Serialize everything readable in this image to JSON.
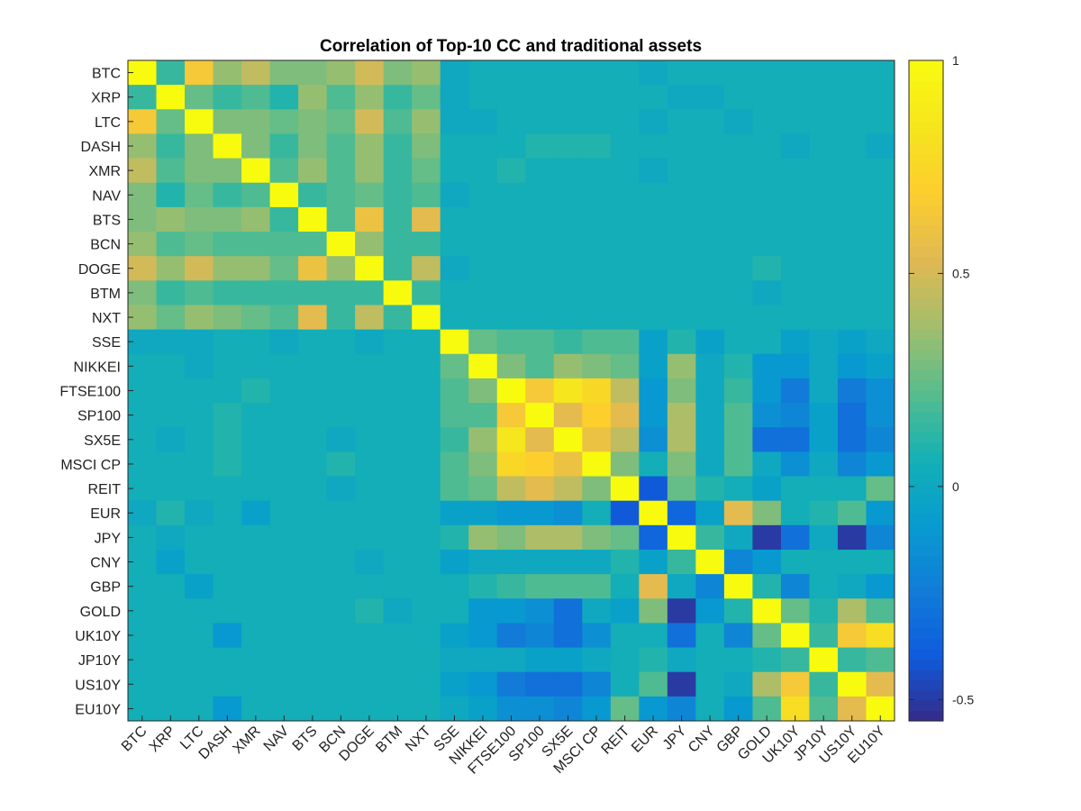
{
  "chart_data": {
    "type": "heatmap",
    "title": "Correlation of Top-10 CC and traditional assets",
    "xlabel": "",
    "ylabel": "",
    "labels": [
      "BTC",
      "XRP",
      "LTC",
      "DASH",
      "XMR",
      "NAV",
      "BTS",
      "BCN",
      "DOGE",
      "BTM",
      "NXT",
      "SSE",
      "NIKKEI",
      "FTSE100",
      "SP100",
      "SX5E",
      "MSCI CP",
      "REIT",
      "EUR",
      "JPY",
      "CNY",
      "GBP",
      "GOLD",
      "UK10Y",
      "JP10Y",
      "US10Y",
      "EU10Y"
    ],
    "values": [
      [
        1.0,
        0.15,
        0.65,
        0.35,
        0.45,
        0.3,
        0.3,
        0.35,
        0.5,
        0.3,
        0.35,
        0.0,
        0.05,
        0.05,
        0.05,
        0.05,
        0.05,
        0.05,
        0.0,
        0.05,
        0.05,
        0.05,
        0.05,
        0.05,
        0.05,
        0.05,
        0.05
      ],
      [
        0.15,
        1.0,
        0.25,
        0.15,
        0.2,
        0.1,
        0.35,
        0.2,
        0.35,
        0.15,
        0.25,
        0.0,
        0.05,
        0.05,
        0.05,
        0.05,
        0.05,
        0.05,
        0.05,
        0.0,
        0.0,
        0.05,
        0.05,
        0.05,
        0.05,
        0.05,
        0.05
      ],
      [
        0.65,
        0.25,
        1.0,
        0.3,
        0.3,
        0.25,
        0.3,
        0.25,
        0.5,
        0.2,
        0.35,
        0.0,
        0.0,
        0.05,
        0.05,
        0.05,
        0.05,
        0.05,
        0.0,
        0.05,
        0.05,
        0.0,
        0.05,
        0.05,
        0.05,
        0.05,
        0.05
      ],
      [
        0.35,
        0.15,
        0.3,
        1.0,
        0.3,
        0.15,
        0.3,
        0.2,
        0.35,
        0.15,
        0.3,
        0.05,
        0.05,
        0.05,
        0.1,
        0.1,
        0.1,
        0.05,
        0.05,
        0.05,
        0.05,
        0.05,
        0.05,
        0.0,
        0.05,
        0.05,
        0.0
      ],
      [
        0.45,
        0.2,
        0.3,
        0.3,
        1.0,
        0.2,
        0.35,
        0.2,
        0.35,
        0.15,
        0.25,
        0.05,
        0.05,
        0.1,
        0.05,
        0.05,
        0.05,
        0.05,
        0.0,
        0.05,
        0.05,
        0.05,
        0.05,
        0.05,
        0.05,
        0.05,
        0.05
      ],
      [
        0.3,
        0.1,
        0.25,
        0.15,
        0.2,
        1.0,
        0.15,
        0.2,
        0.25,
        0.15,
        0.2,
        0.0,
        0.05,
        0.05,
        0.05,
        0.05,
        0.05,
        0.05,
        0.05,
        0.05,
        0.05,
        0.05,
        0.05,
        0.05,
        0.05,
        0.05,
        0.05
      ],
      [
        0.3,
        0.35,
        0.3,
        0.3,
        0.35,
        0.15,
        1.0,
        0.2,
        0.6,
        0.15,
        0.55,
        0.05,
        0.05,
        0.05,
        0.05,
        0.05,
        0.05,
        0.05,
        0.05,
        0.05,
        0.05,
        0.05,
        0.05,
        0.05,
        0.05,
        0.05,
        0.05
      ],
      [
        0.35,
        0.2,
        0.25,
        0.2,
        0.2,
        0.2,
        0.2,
        1.0,
        0.35,
        0.15,
        0.15,
        0.05,
        0.05,
        0.05,
        0.05,
        0.05,
        0.05,
        0.05,
        0.05,
        0.05,
        0.05,
        0.05,
        0.05,
        0.05,
        0.05,
        0.05,
        0.05
      ],
      [
        0.5,
        0.35,
        0.5,
        0.35,
        0.35,
        0.25,
        0.6,
        0.35,
        1.0,
        0.15,
        0.45,
        0.0,
        0.05,
        0.05,
        0.05,
        0.05,
        0.05,
        0.05,
        0.05,
        0.05,
        0.05,
        0.05,
        0.1,
        0.05,
        0.05,
        0.05,
        0.05
      ],
      [
        0.3,
        0.15,
        0.2,
        0.15,
        0.15,
        0.15,
        0.15,
        0.15,
        0.15,
        1.0,
        0.15,
        0.05,
        0.05,
        0.05,
        0.05,
        0.05,
        0.05,
        0.05,
        0.05,
        0.05,
        0.05,
        0.05,
        0.0,
        0.05,
        0.05,
        0.05,
        0.05
      ],
      [
        0.35,
        0.25,
        0.35,
        0.3,
        0.25,
        0.2,
        0.55,
        0.15,
        0.45,
        0.15,
        1.0,
        0.05,
        0.05,
        0.05,
        0.05,
        0.05,
        0.05,
        0.05,
        0.05,
        0.05,
        0.05,
        0.05,
        0.05,
        0.05,
        0.05,
        0.05,
        0.05
      ],
      [
        0.0,
        0.0,
        0.0,
        0.05,
        0.05,
        0.0,
        0.05,
        0.05,
        0.0,
        0.05,
        0.05,
        1.0,
        0.25,
        0.2,
        0.2,
        0.15,
        0.2,
        0.2,
        -0.05,
        0.1,
        -0.05,
        0.05,
        0.05,
        -0.05,
        0.0,
        -0.05,
        0.0
      ],
      [
        0.05,
        0.05,
        0.0,
        0.05,
        0.05,
        0.05,
        0.05,
        0.05,
        0.05,
        0.05,
        0.05,
        0.25,
        1.0,
        0.3,
        0.2,
        0.35,
        0.3,
        0.25,
        -0.05,
        0.35,
        0.0,
        0.1,
        -0.1,
        -0.1,
        0.0,
        -0.1,
        -0.05
      ],
      [
        0.05,
        0.05,
        0.05,
        0.05,
        0.1,
        0.05,
        0.05,
        0.05,
        0.05,
        0.05,
        0.05,
        0.2,
        0.3,
        1.0,
        0.65,
        0.85,
        0.75,
        0.45,
        -0.1,
        0.3,
        0.0,
        0.15,
        -0.1,
        -0.25,
        0.0,
        -0.25,
        -0.15
      ],
      [
        0.05,
        0.05,
        0.05,
        0.1,
        0.05,
        0.05,
        0.05,
        0.05,
        0.05,
        0.05,
        0.05,
        0.2,
        0.2,
        0.65,
        1.0,
        0.55,
        0.7,
        0.55,
        -0.1,
        0.4,
        0.0,
        0.2,
        -0.15,
        -0.2,
        -0.05,
        -0.3,
        -0.15
      ],
      [
        0.05,
        0.0,
        0.05,
        0.1,
        0.05,
        0.05,
        0.05,
        0.0,
        0.05,
        0.05,
        0.05,
        0.15,
        0.35,
        0.85,
        0.55,
        1.0,
        0.6,
        0.45,
        -0.15,
        0.4,
        0.0,
        0.2,
        -0.3,
        -0.3,
        -0.05,
        -0.3,
        -0.2
      ],
      [
        0.05,
        0.05,
        0.05,
        0.1,
        0.05,
        0.05,
        0.05,
        0.1,
        0.05,
        0.05,
        0.05,
        0.2,
        0.3,
        0.75,
        0.7,
        0.6,
        1.0,
        0.3,
        0.05,
        0.3,
        0.0,
        0.2,
        0.0,
        -0.15,
        0.0,
        -0.2,
        -0.1
      ],
      [
        0.05,
        0.05,
        0.05,
        0.05,
        0.05,
        0.05,
        0.05,
        0.0,
        0.05,
        0.05,
        0.05,
        0.2,
        0.25,
        0.45,
        0.55,
        0.45,
        0.3,
        1.0,
        -0.4,
        0.25,
        0.1,
        0.05,
        -0.05,
        0.05,
        0.05,
        0.05,
        0.25
      ],
      [
        0.0,
        0.1,
        0.0,
        0.05,
        -0.05,
        0.05,
        0.05,
        0.05,
        0.05,
        0.05,
        0.05,
        -0.05,
        -0.05,
        -0.1,
        -0.1,
        -0.15,
        0.05,
        -0.4,
        1.0,
        -0.35,
        -0.05,
        0.55,
        0.3,
        0.05,
        0.1,
        0.2,
        -0.1
      ],
      [
        0.05,
        0.0,
        0.05,
        0.05,
        0.05,
        0.05,
        0.05,
        0.05,
        0.05,
        0.05,
        0.05,
        0.1,
        0.35,
        0.3,
        0.4,
        0.4,
        0.3,
        0.25,
        -0.35,
        1.0,
        0.15,
        0.0,
        -0.5,
        -0.3,
        0.0,
        -0.5,
        -0.2
      ],
      [
        0.05,
        -0.05,
        0.05,
        0.05,
        0.05,
        0.05,
        0.05,
        0.05,
        0.0,
        0.05,
        0.05,
        -0.05,
        0.0,
        0.0,
        0.0,
        0.0,
        0.0,
        0.1,
        -0.05,
        0.15,
        1.0,
        -0.2,
        -0.1,
        0.05,
        0.05,
        0.05,
        0.05
      ],
      [
        0.05,
        0.05,
        -0.05,
        0.05,
        0.05,
        0.05,
        0.05,
        0.05,
        0.05,
        0.05,
        0.05,
        0.05,
        0.1,
        0.15,
        0.2,
        0.2,
        0.2,
        0.05,
        0.55,
        0.0,
        -0.2,
        1.0,
        0.1,
        -0.2,
        0.05,
        0.0,
        -0.1
      ],
      [
        0.05,
        0.05,
        0.05,
        0.05,
        0.05,
        0.05,
        0.05,
        0.05,
        0.1,
        0.0,
        0.05,
        0.05,
        -0.1,
        -0.1,
        -0.15,
        -0.3,
        0.0,
        -0.05,
        0.3,
        -0.5,
        -0.1,
        0.1,
        1.0,
        0.25,
        0.1,
        0.4,
        0.2
      ],
      [
        0.05,
        0.05,
        0.05,
        -0.1,
        0.05,
        0.05,
        0.05,
        0.05,
        0.05,
        0.05,
        0.05,
        -0.05,
        -0.1,
        -0.25,
        -0.2,
        -0.3,
        -0.15,
        0.05,
        0.05,
        -0.3,
        0.05,
        -0.2,
        0.25,
        1.0,
        0.15,
        0.65,
        0.8
      ],
      [
        0.05,
        0.05,
        0.05,
        0.05,
        0.05,
        0.05,
        0.05,
        0.05,
        0.05,
        0.05,
        0.05,
        0.0,
        0.0,
        0.0,
        -0.05,
        -0.05,
        0.0,
        0.05,
        0.1,
        0.0,
        0.05,
        0.05,
        0.1,
        0.15,
        1.0,
        0.15,
        0.2
      ],
      [
        0.05,
        0.05,
        0.05,
        0.05,
        0.05,
        0.05,
        0.05,
        0.05,
        0.05,
        0.05,
        0.05,
        -0.05,
        -0.1,
        -0.25,
        -0.3,
        -0.3,
        -0.2,
        0.05,
        0.2,
        -0.5,
        0.05,
        0.0,
        0.4,
        0.65,
        0.15,
        1.0,
        0.55
      ],
      [
        0.05,
        0.05,
        0.05,
        -0.1,
        0.05,
        0.05,
        0.05,
        0.05,
        0.05,
        0.05,
        0.05,
        0.0,
        -0.05,
        -0.15,
        -0.15,
        -0.2,
        -0.1,
        0.25,
        -0.1,
        -0.2,
        0.05,
        -0.1,
        0.2,
        0.8,
        0.2,
        0.55,
        1.0
      ]
    ],
    "colorbar": {
      "min": -0.55,
      "max": 1.0,
      "ticks": [
        -0.5,
        0,
        0.5,
        1
      ],
      "tick_labels": [
        "-0.5",
        "0",
        "0.5",
        "1"
      ],
      "colormap": "parula"
    },
    "grid": false,
    "legend": "colorbar-right"
  }
}
